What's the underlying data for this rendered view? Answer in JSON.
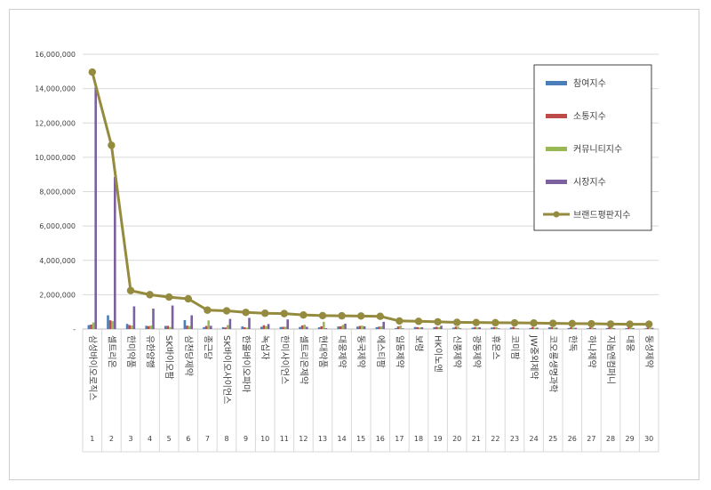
{
  "chart_data": {
    "type": "bar",
    "categories": [
      "삼성바이오로직스",
      "셀트리온",
      "한미약품",
      "유한양행",
      "SK바이오팜",
      "삼천당제약",
      "종근당",
      "SK바이오사이언스",
      "한올바이오파마",
      "녹십자",
      "한미사이언스",
      "셀트리온제약",
      "현대약품",
      "대웅제약",
      "동국제약",
      "에스티팜",
      "일동제약",
      "보령",
      "HK이노엔",
      "신풍제약",
      "광동제약",
      "휴온스",
      "코미팜",
      "JW중외제약",
      "코오롱생명과학",
      "한독",
      "하나제약",
      "지놈앤컴퍼니",
      "대웅",
      "동성제약"
    ],
    "index_labels": [
      "1",
      "2",
      "3",
      "4",
      "5",
      "6",
      "7",
      "8",
      "9",
      "10",
      "11",
      "12",
      "13",
      "14",
      "15",
      "16",
      "17",
      "18",
      "19",
      "20",
      "21",
      "22",
      "23",
      "24",
      "25",
      "26",
      "27",
      "28",
      "29",
      "30"
    ],
    "series": [
      {
        "name": "참여지수",
        "type": "bar",
        "color": "#4a7ebb",
        "values": [
          230000,
          800000,
          300000,
          190000,
          180000,
          520000,
          110000,
          110000,
          150000,
          130000,
          120000,
          120000,
          100000,
          150000,
          140000,
          110000,
          60000,
          120000,
          110000,
          80000,
          80000,
          90000,
          90000,
          60000,
          100000,
          60000,
          50000,
          60000,
          50000,
          40000
        ]
      },
      {
        "name": "소통지수",
        "type": "bar",
        "color": "#be4b48",
        "values": [
          260000,
          510000,
          230000,
          170000,
          190000,
          200000,
          180000,
          90000,
          100000,
          220000,
          130000,
          210000,
          160000,
          160000,
          180000,
          140000,
          150000,
          110000,
          130000,
          140000,
          120000,
          110000,
          120000,
          120000,
          110000,
          110000,
          100000,
          110000,
          90000,
          90000
        ]
      },
      {
        "name": "커뮤니티지수",
        "type": "bar",
        "color": "#98b954",
        "values": [
          380000,
          460000,
          200000,
          200000,
          120000,
          180000,
          500000,
          230000,
          80000,
          170000,
          130000,
          250000,
          420000,
          240000,
          200000,
          160000,
          200000,
          90000,
          110000,
          140000,
          90000,
          110000,
          70000,
          70000,
          80000,
          80000,
          90000,
          100000,
          80000,
          80000
        ]
      },
      {
        "name": "시장지수",
        "type": "bar",
        "color": "#7d60a0",
        "values": [
          14100000,
          8850000,
          1320000,
          1190000,
          1370000,
          800000,
          190000,
          590000,
          650000,
          290000,
          560000,
          130000,
          50000,
          310000,
          160000,
          420000,
          40000,
          100000,
          190000,
          40000,
          100000,
          40000,
          40000,
          80000,
          80000,
          70000,
          50000,
          50000,
          60000,
          70000
        ]
      },
      {
        "name": "브랜드평판지수",
        "type": "line",
        "color": "#958b3e",
        "values": [
          14960000,
          10700000,
          2240000,
          2000000,
          1860000,
          1760000,
          1100000,
          1060000,
          970000,
          920000,
          900000,
          820000,
          780000,
          770000,
          760000,
          740000,
          470000,
          450000,
          420000,
          390000,
          380000,
          370000,
          360000,
          350000,
          330000,
          320000,
          310000,
          290000,
          280000,
          280000
        ]
      }
    ],
    "y_ticks": [
      "-",
      "2,000,000",
      "4,000,000",
      "6,000,000",
      "8,000,000",
      "10,000,000",
      "12,000,000",
      "14,000,000",
      "16,000,000"
    ],
    "ylim": [
      0,
      16000000
    ],
    "legend_position": "top-right",
    "grid": true
  }
}
